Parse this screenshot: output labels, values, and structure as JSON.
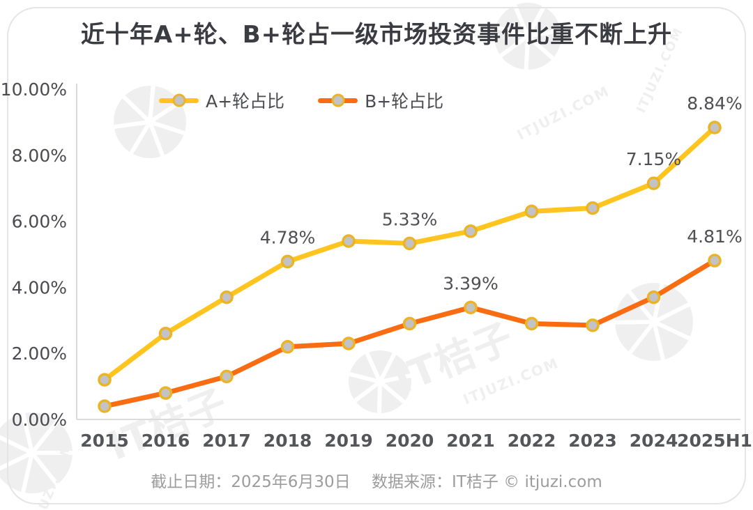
{
  "title": "近十年A+轮、B+轮占一级市场投资事件比重不断上升",
  "legend": [
    {
      "label": "A+轮占比",
      "color": "#ffc41d"
    },
    {
      "label": "B+轮占比",
      "color": "#fa6c12"
    }
  ],
  "footer": "截止日期：2025年6月30日　 数据来源：IT桔子 © itjuzi.com",
  "watermark": {
    "brand": "IT桔子",
    "domain": "ITJUZI.COM"
  },
  "colors": {
    "title": "#3b3b42",
    "axis_line": "#dbdbdb",
    "tick_label": "#4a4b50",
    "x_label": "#55565a",
    "data_label": "#4f4f54",
    "marker_fill": "#c3c3c7",
    "marker_ring": "#ebb424",
    "footer_text": "#9c9c9c",
    "watermark": "#efefef",
    "card_border": "#e5e5e5"
  },
  "chart_data": {
    "type": "line",
    "categories": [
      "2015",
      "2016",
      "2017",
      "2018",
      "2019",
      "2020",
      "2021",
      "2022",
      "2023",
      "2024",
      "2025H1"
    ],
    "series": [
      {
        "name": "A+轮占比",
        "color": "#ffc41d",
        "values": [
          1.2,
          2.6,
          3.7,
          4.78,
          5.4,
          5.33,
          5.7,
          6.3,
          6.4,
          7.15,
          8.84
        ]
      },
      {
        "name": "B+轮占比",
        "color": "#fa6c12",
        "values": [
          0.4,
          0.8,
          1.3,
          2.2,
          2.3,
          2.9,
          3.39,
          2.9,
          2.85,
          3.7,
          4.81
        ]
      }
    ],
    "data_labels": [
      {
        "series": 0,
        "point": 3,
        "text": "4.78%"
      },
      {
        "series": 0,
        "point": 5,
        "text": "5.33%"
      },
      {
        "series": 0,
        "point": 9,
        "text": "7.15%"
      },
      {
        "series": 0,
        "point": 10,
        "text": "8.84%"
      },
      {
        "series": 1,
        "point": 6,
        "text": "3.39%"
      },
      {
        "series": 1,
        "point": 10,
        "text": "4.81%"
      }
    ],
    "yticks": [
      {
        "value": 10,
        "label": "10.00%"
      },
      {
        "value": 8,
        "label": "8.00%"
      },
      {
        "value": 6,
        "label": "6.00%"
      },
      {
        "value": 4,
        "label": "4.00%"
      },
      {
        "value": 2,
        "label": "2.00%"
      },
      {
        "value": 0,
        "label": "0.00%"
      }
    ],
    "ylim": [
      0,
      10
    ],
    "grid": false,
    "legend_position": "top",
    "title": "近十年A+轮、B+轮占一级市场投资事件比重不断上升",
    "xlabel": "",
    "ylabel": ""
  }
}
